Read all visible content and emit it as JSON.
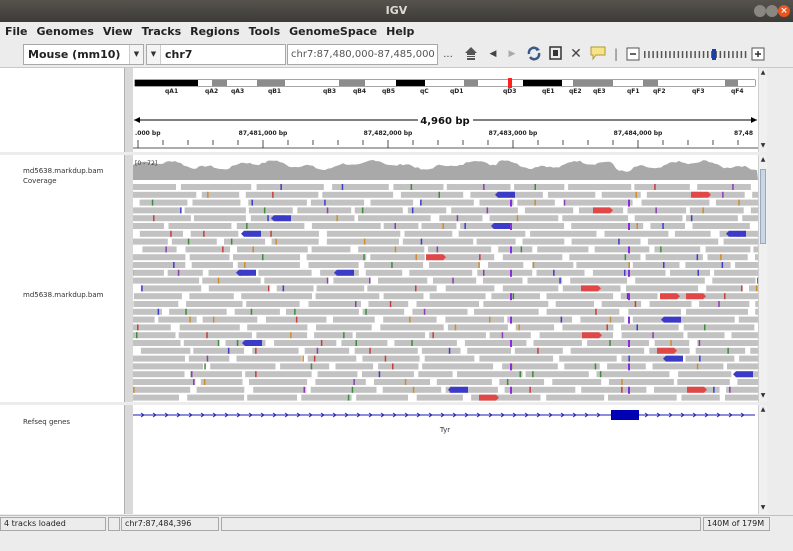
{
  "window": {
    "title": "IGV"
  },
  "menu": [
    "File",
    "Genomes",
    "View",
    "Tracks",
    "Regions",
    "Tools",
    "GenomeSpace",
    "Help"
  ],
  "toolbar": {
    "genome": "Mouse (mm10)",
    "chromosome": "chr7",
    "locus": "chr7:87,480,000-87,485,000",
    "locus_go": "..."
  },
  "ideogram": {
    "bands": [
      "qA1",
      "qA2",
      "qA3",
      "qB1",
      "qB3",
      "qB4",
      "qB5",
      "qC",
      "qD1",
      "qD3",
      "qE1",
      "qE2",
      "qE3",
      "qF1",
      "qF2",
      "qF3",
      "qF4"
    ]
  },
  "ruler": {
    "span": "4,960 bp",
    "ticks": [
      ".000 bp",
      "87,481,000 bp",
      "87,482,000 bp",
      "87,483,000 bp",
      "87,484,000 bp",
      "87,48"
    ]
  },
  "tracks": {
    "coverage_name": "md5638.markdup.bam Coverage",
    "coverage_range": "[0 - 72]",
    "alignment_name": "md5638.markdup.bam",
    "genes_name": "Refseq genes",
    "gene_label": "Tyr"
  },
  "status": {
    "message": "4 tracks loaded",
    "position": "chr7:87,484,396",
    "memory": "140M of 179M"
  },
  "colors": {
    "read_gray": "#c2c2c2",
    "read_forward": "#e04848",
    "read_reverse": "#3b3bc8",
    "gene_blue": "#0000b4",
    "coverage_gray": "#a9a9a9",
    "accent_orange": "#e9541f"
  }
}
